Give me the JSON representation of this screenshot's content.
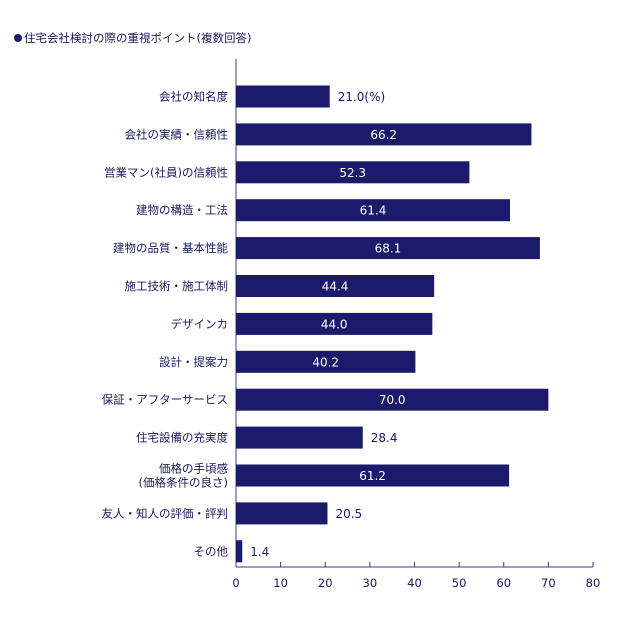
{
  "title": "住宅会社検討の際の重視ポイント(複数回答)",
  "colors": {
    "bar": "#1c1a6b",
    "axis": "#3a3a8a",
    "text": "#1a1a5e"
  },
  "chart_data": {
    "type": "bar",
    "orientation": "horizontal",
    "title": "住宅会社検討の際の重視ポイント(複数回答)",
    "unit": "(%)",
    "xlim": [
      0,
      80
    ],
    "xticks": [
      0,
      10,
      20,
      30,
      40,
      50,
      60,
      70,
      80
    ],
    "grid": false,
    "categories": [
      [
        "会社の知名度"
      ],
      [
        "会社の実績・信頼性"
      ],
      [
        "営業マン(社員)の信頼性"
      ],
      [
        "建物の構造・工法"
      ],
      [
        "建物の品質・基本性能"
      ],
      [
        "施工技術・施工体制"
      ],
      [
        "デザインカ"
      ],
      [
        "設計・提案力"
      ],
      [
        "保証・アフターサービス"
      ],
      [
        "住宅設備の充実度"
      ],
      [
        "価格の手頃感",
        "(価格条件の良さ)"
      ],
      [
        "友人・知人の評価・評判"
      ],
      [
        "その他"
      ]
    ],
    "values": [
      21.0,
      66.2,
      52.3,
      61.4,
      68.1,
      44.4,
      44.0,
      40.2,
      70.0,
      28.4,
      61.2,
      20.5,
      1.4
    ],
    "value_labels": [
      "21.0(%)",
      "66.2",
      "52.3",
      "61.4",
      "68.1",
      "44.4",
      "44.0",
      "40.2",
      "70.0",
      "28.4",
      "61.2",
      "20.5",
      "1.4"
    ]
  }
}
